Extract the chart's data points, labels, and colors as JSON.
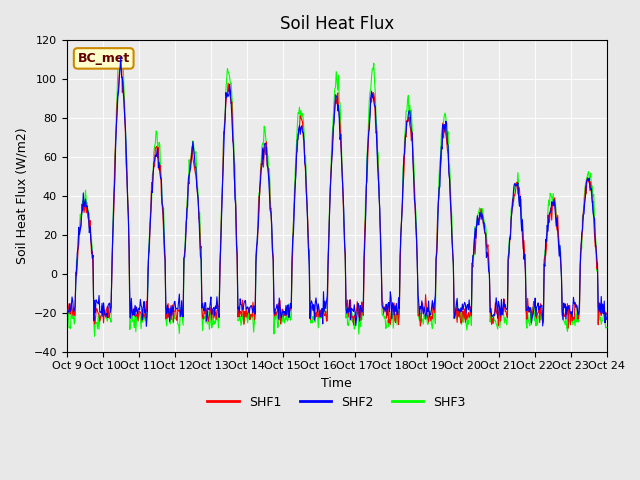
{
  "title": "Soil Heat Flux",
  "ylabel": "Soil Heat Flux (W/m2)",
  "xlabel": "Time",
  "ylim": [
    -40,
    120
  ],
  "fig_bg": "#e8e8e8",
  "ax_bg": "#ebebeb",
  "grid_color": "white",
  "annotation_text": "BC_met",
  "annotation_fg": "#660000",
  "annotation_bg": "#ffffcc",
  "annotation_border": "#cc8800",
  "legend_labels": [
    "SHF1",
    "SHF2",
    "SHF3"
  ],
  "line_colors": [
    "red",
    "blue",
    "lime"
  ],
  "xtick_labels": [
    "Oct 9",
    "Oct 10",
    "Oct 11",
    "Oct 12",
    "Oct 13",
    "Oct 14",
    "Oct 15",
    "Oct 16",
    "Oct 17",
    "Oct 18",
    "Oct 19",
    "Oct 20",
    "Oct 21",
    "Oct 22",
    "Oct 23",
    "Oct 24"
  ],
  "yticks": [
    -40,
    -20,
    0,
    20,
    40,
    60,
    80,
    100,
    120
  ],
  "num_days": 15,
  "points_per_day": 48,
  "day_peak_scales": [
    1.2,
    3.5,
    2.1,
    2.0,
    3.2,
    2.2,
    2.6,
    3.0,
    3.1,
    2.7,
    2.5,
    1.0,
    1.5,
    1.2,
    1.6
  ],
  "night_level": -20,
  "base_peak": 30,
  "noise_level": 3.0,
  "line_width": 0.8
}
